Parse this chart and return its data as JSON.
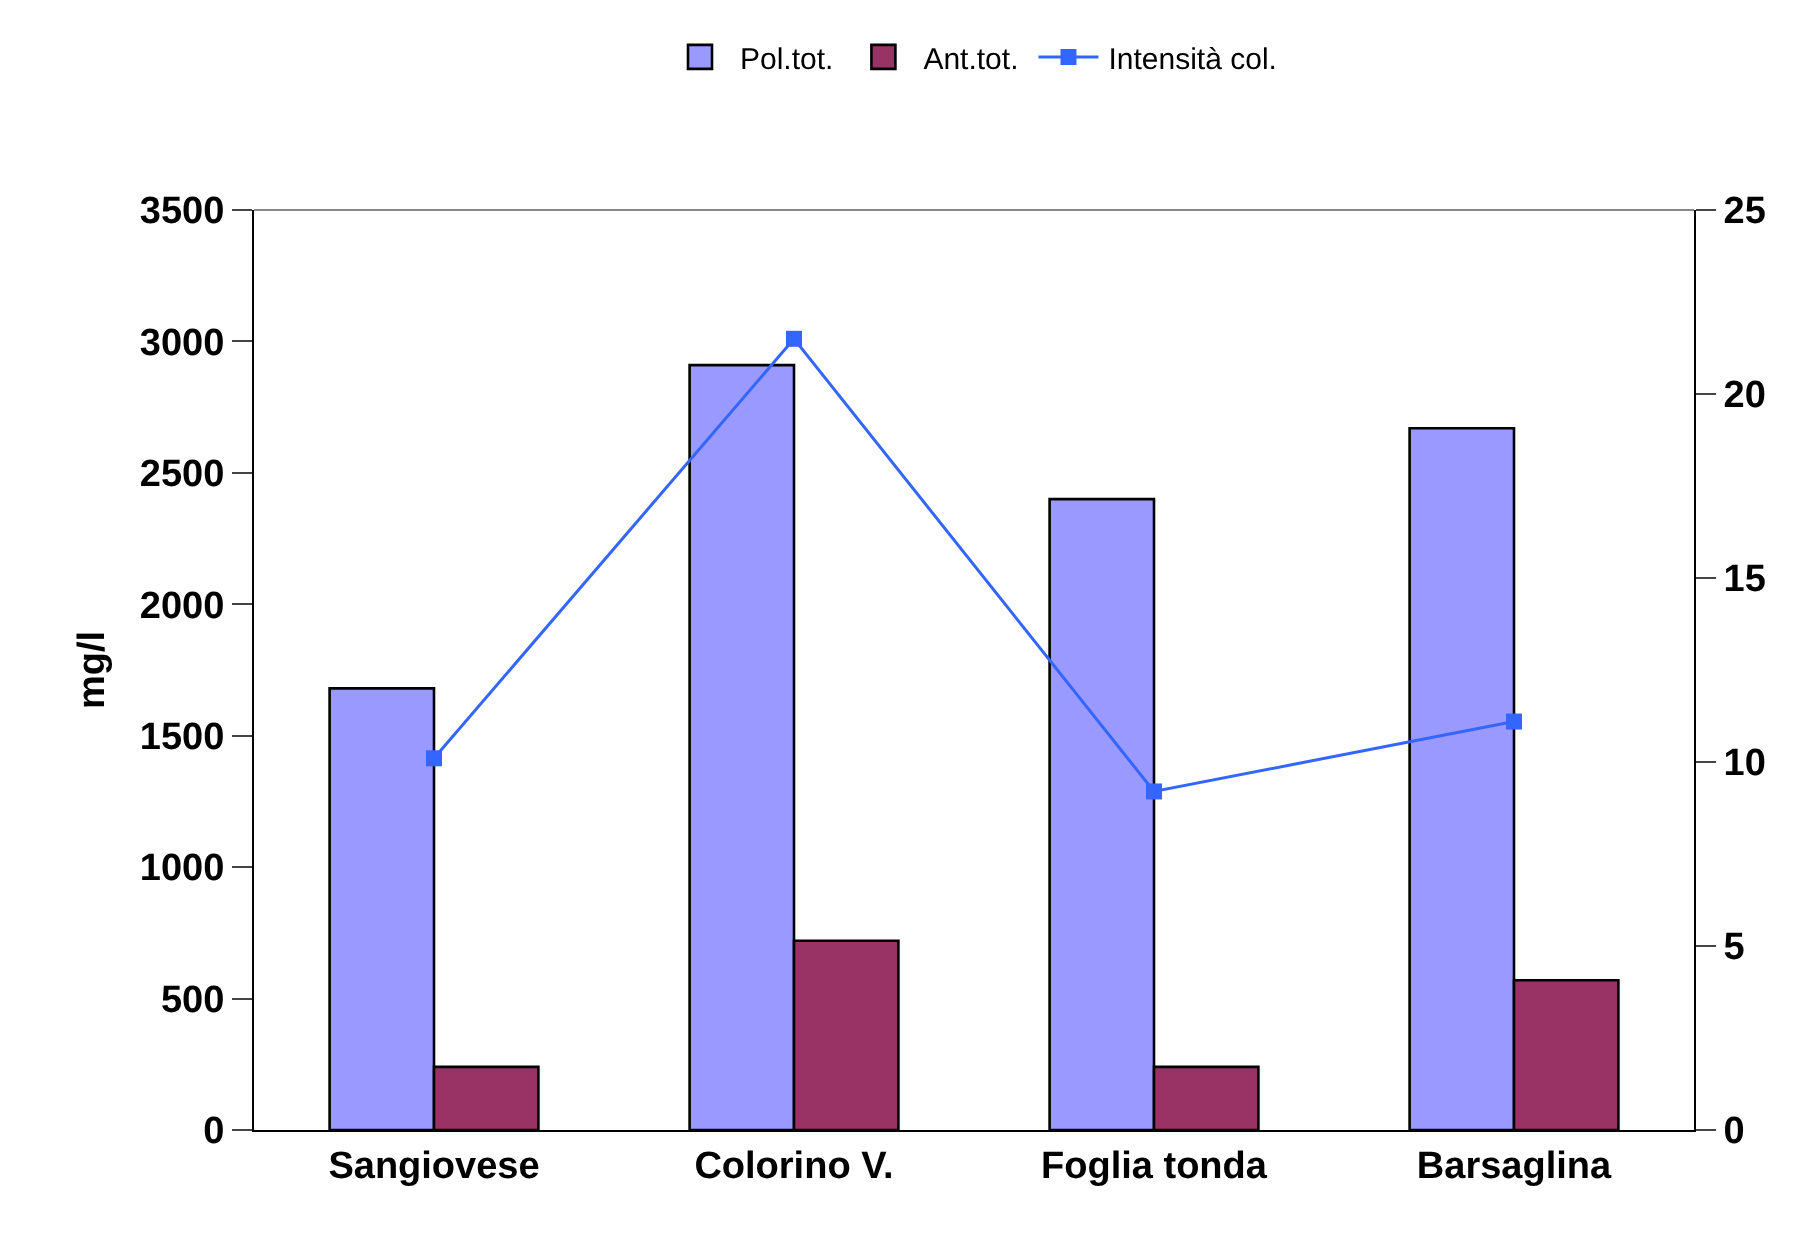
{
  "chart_data": {
    "type": "bar",
    "categories": [
      "Sangiovese",
      "Colorino V.",
      "Foglia tonda",
      "Barsaglina"
    ],
    "series": [
      {
        "name": "Pol.tot.",
        "color": "#9999ff",
        "values": [
          1680,
          2910,
          2400,
          2670
        ]
      },
      {
        "name": "Ant.tot.",
        "color": "#993366",
        "values": [
          240,
          720,
          240,
          570
        ]
      },
      {
        "name": "Intensità col.",
        "type": "line",
        "axis": "y2",
        "color": "#3366ff",
        "marker": "square",
        "values": [
          10.1,
          21.5,
          9.2,
          11.1
        ]
      }
    ],
    "ylabel": "mg/l",
    "ylim": [
      0,
      3500
    ],
    "yticks": [
      0,
      500,
      1000,
      1500,
      2000,
      2500,
      3000,
      3500
    ],
    "y2lim": [
      0,
      25
    ],
    "y2ticks": [
      0,
      5,
      10,
      15,
      20,
      25
    ],
    "grid": false,
    "legend": "top"
  }
}
